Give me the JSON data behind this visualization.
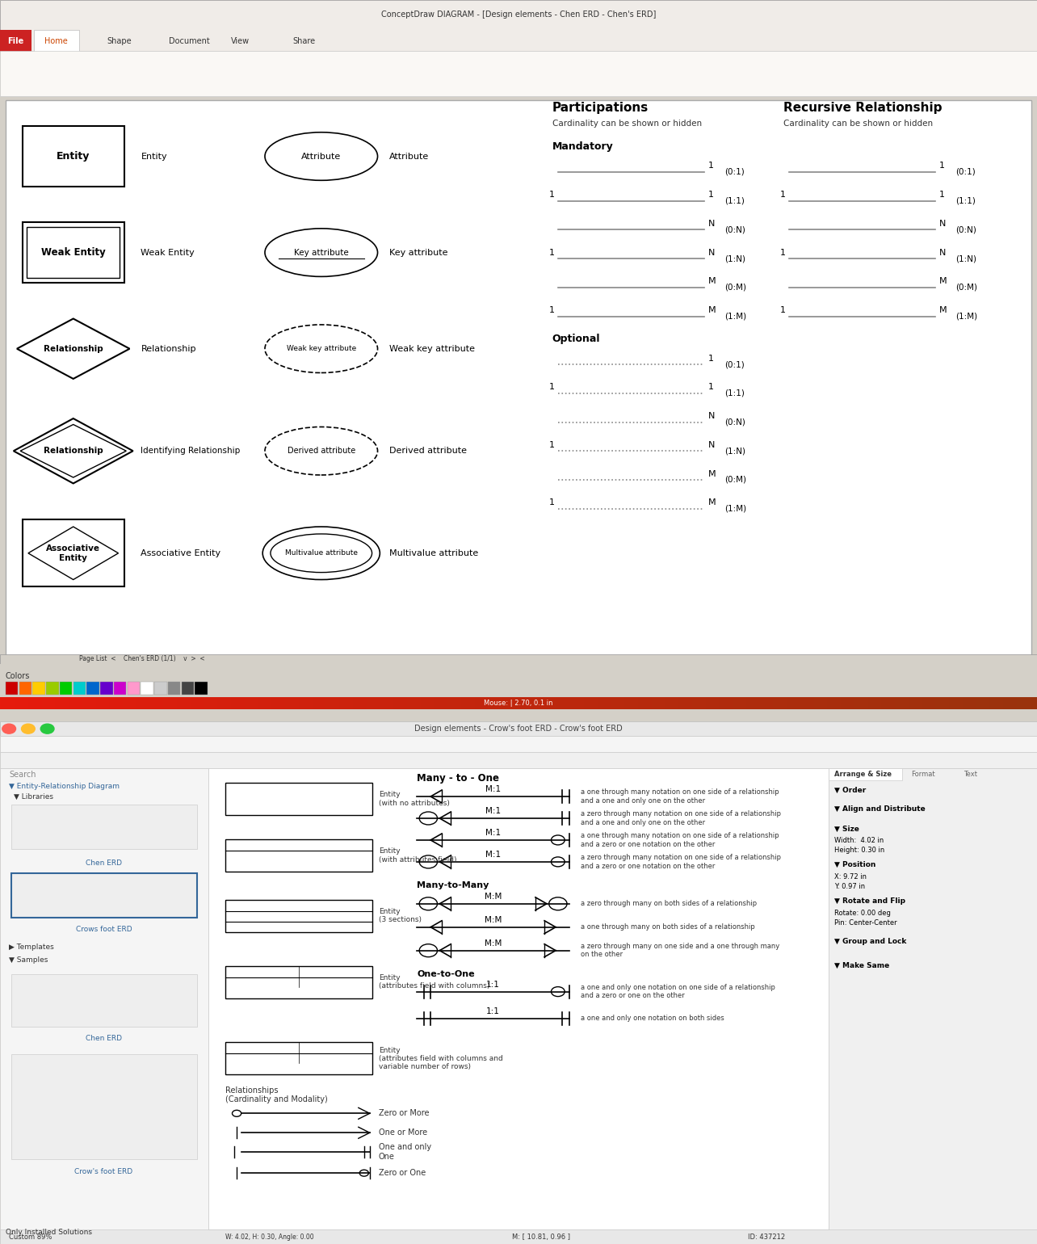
{
  "title": "ConceptDraw DIAGRAM - [Design elements - Chen ERD - Chen's ERD]",
  "bg_color": "#d4d0c8",
  "panel1_bg": "#ffffff",
  "panel2_bg": "#ffffff",
  "menu_items": [
    "File",
    "Home",
    "Shape",
    "Document",
    "View",
    "Share"
  ],
  "mandatory_data": [
    [
      null,
      "1",
      "(0:1)",
      462,
      false
    ],
    [
      "1",
      "1",
      "(1:1)",
      438,
      false
    ],
    [
      null,
      "N",
      "(0:N)",
      414,
      false
    ],
    [
      "1",
      "N",
      "(1:N)",
      390,
      false
    ],
    [
      null,
      "M",
      "(0:M)",
      366,
      false
    ],
    [
      "1",
      "M",
      "(1:M)",
      342,
      false
    ]
  ],
  "optional_data": [
    [
      null,
      "1",
      "(0:1)",
      302,
      true
    ],
    [
      "1",
      "1",
      "(1:1)",
      278,
      true
    ],
    [
      null,
      "N",
      "(0:N)",
      254,
      true
    ],
    [
      "1",
      "N",
      "(1:N)",
      230,
      true
    ],
    [
      null,
      "M",
      "(0:M)",
      206,
      true
    ],
    [
      "1",
      "M",
      "(1:M)",
      182,
      true
    ]
  ],
  "colors_row": [
    "#cc0000",
    "#ff6600",
    "#ffcc00",
    "#99cc00",
    "#00cc00",
    "#00cccc",
    "#0066cc",
    "#6600cc",
    "#cc00cc",
    "#ff99cc",
    "#ffffff",
    "#cccccc",
    "#888888",
    "#444444",
    "#000000"
  ],
  "traffic_lights": [
    {
      "x": 8,
      "color": "#ff5f56"
    },
    {
      "x": 25,
      "color": "#ffbd2e"
    },
    {
      "x": 42,
      "color": "#27c93f"
    }
  ]
}
